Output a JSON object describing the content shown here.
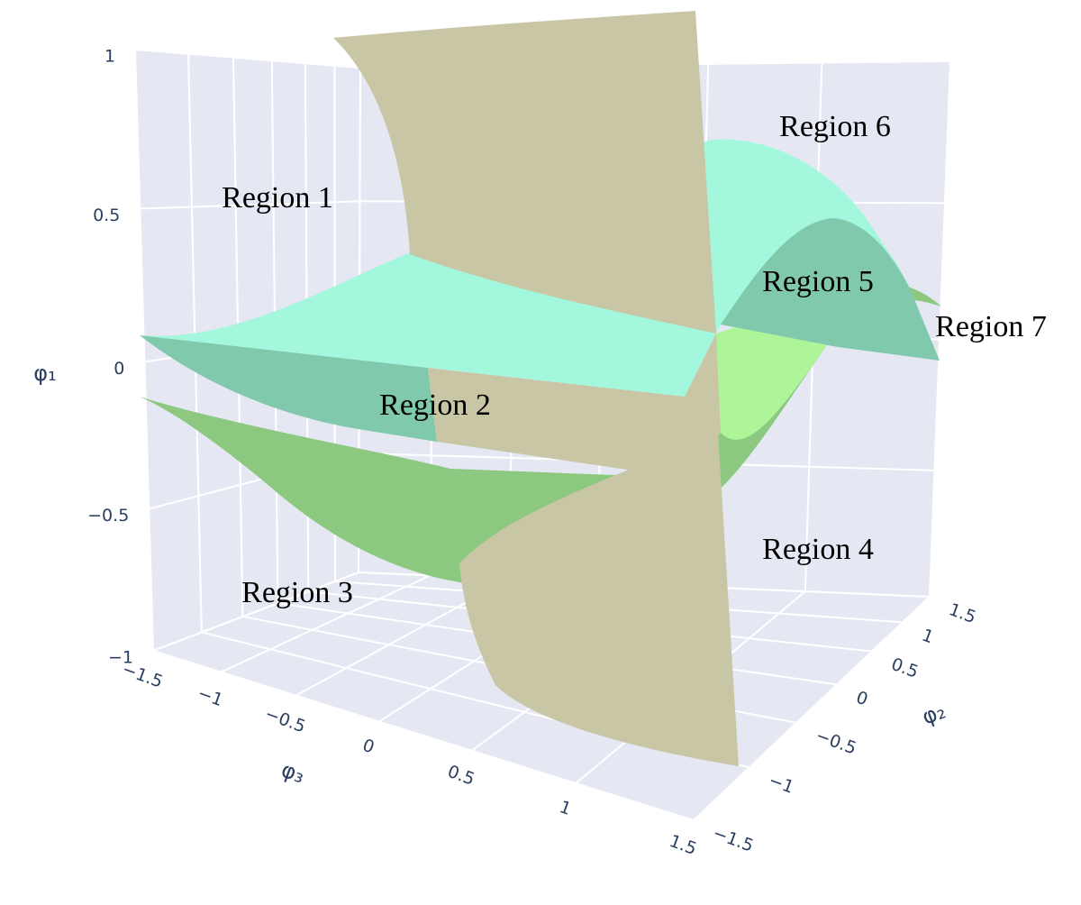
{
  "chart_data": {
    "type": "surface3d",
    "xlabel": "φ₃",
    "ylabel": "φ₂",
    "zlabel": "φ₁",
    "xlim": [
      -1.5,
      1.5
    ],
    "xticks": [
      {
        "value": -1.5,
        "label": "−1.5"
      },
      {
        "value": -1,
        "label": "−1"
      },
      {
        "value": -0.5,
        "label": "−0.5"
      },
      0,
      0.5,
      1,
      1.5
    ],
    "ylim": [
      -1.5,
      1.5
    ],
    "yticks": [
      {
        "value": -1.5,
        "label": "−1.5"
      },
      {
        "value": -1,
        "label": "−1"
      },
      {
        "value": -0.5,
        "label": "−0.5"
      },
      0,
      0.5,
      1,
      1.5
    ],
    "zlim": [
      -1,
      1
    ],
    "zticks": [
      {
        "value": -1,
        "label": "−1"
      },
      {
        "value": -0.5,
        "label": "−0.5"
      },
      0,
      0.5,
      1
    ],
    "annotations": [
      "Region 1",
      "Region 2",
      "Region 3",
      "Region 4",
      "Region 5",
      "Region 6",
      "Region 7"
    ]
  }
}
